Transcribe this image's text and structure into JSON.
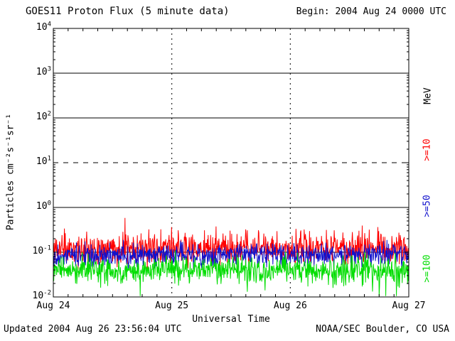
{
  "header": {
    "title": "GOES11 Proton Flux (5 minute data)",
    "begin_label": "Begin: 2004 Aug 24 0000 UTC"
  },
  "axes": {
    "y_label": "Particles cm⁻²s⁻¹sr⁻¹",
    "x_label": "Universal Time"
  },
  "right_labels": {
    "unit": "MeV"
  },
  "footer": {
    "updated": "Updated 2004 Aug 26 23:56:04 UTC",
    "credit": "NOAA/SEC Boulder, CO USA"
  },
  "colors": {
    "axis": "#000000",
    "background": "#ffffff",
    "ge10": "#ff0000",
    "ge50": "#1111cc",
    "ge100": "#00dd00"
  },
  "chart_data": {
    "type": "line",
    "title": "GOES11 Proton Flux (5 minute data)",
    "xlabel": "Universal Time",
    "ylabel": "Particles cm-2 s-1 sr-1",
    "sample_interval_minutes": 5,
    "x_axis": {
      "start": "2004 Aug 24 0000 UTC",
      "end": "2004 Aug 27 0000 UTC",
      "hours": 72,
      "tick_labels": [
        "Aug 24",
        "Aug 25",
        "Aug 26",
        "Aug 27"
      ],
      "day_boundaries_hours": [
        24,
        48
      ]
    },
    "y_axis": {
      "scale": "log10",
      "lim_log10": [
        -2,
        4
      ],
      "tick_base": "10",
      "tick_exponents": [
        4,
        3,
        2,
        1,
        0,
        -1,
        -2
      ]
    },
    "grid": {
      "h_lines": [
        {
          "log10": 3,
          "style": "solid"
        },
        {
          "log10": 2,
          "style": "solid"
        },
        {
          "log10": 1,
          "style": "dashed"
        },
        {
          "log10": 0,
          "style": "solid"
        },
        {
          "log10": -1,
          "style": "solid"
        }
      ],
      "v_lines_hours": [
        24,
        48
      ],
      "v_style": "dotted"
    },
    "series": [
      {
        "name": ">=10 MeV",
        "label": ">=10",
        "color": "#ff0000",
        "approx_mean_flux": 0.12,
        "approx_range_flux": [
          0.06,
          0.5
        ],
        "mean_log10": -0.92,
        "sigma_scale": 0.6,
        "spike_prob": 0.05,
        "spike_amp": 0.45,
        "seed": 11
      },
      {
        "name": ">=50 MeV",
        "label": ">=50",
        "color": "#1111cc",
        "approx_mean_flux": 0.085,
        "approx_range_flux": [
          0.04,
          0.18
        ],
        "mean_log10": -1.07,
        "sigma_scale": 0.45,
        "spike_prob": 0.03,
        "spike_amp": 0.25,
        "seed": 47
      },
      {
        "name": ">=100 MeV",
        "label": ">=100",
        "color": "#00dd00",
        "approx_mean_flux": 0.04,
        "approx_range_flux": [
          0.012,
          0.09
        ],
        "mean_log10": -1.4,
        "sigma_scale": 0.52,
        "spike_prob": 0.04,
        "spike_amp": -0.5,
        "seed": 83
      }
    ]
  }
}
